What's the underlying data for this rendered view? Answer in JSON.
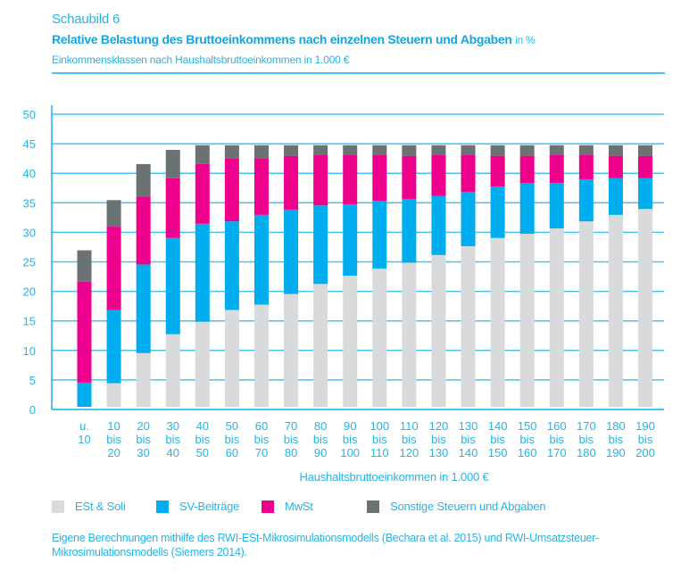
{
  "header": {
    "kicker": "Schaubild 6",
    "title": "Relative Belastung des Bruttoeinkommens nach einzelnen Steuern und Abgaben",
    "title_unit": "in %",
    "subtitle": "Einkommensklassen nach Haushaltsbruttoeinkommen in 1.000 €"
  },
  "source_note": "Eigene Berechnungen mithilfe des RWI-ESt-Mikrosimulationsmodells (Bechara et al. 2015) und RWI-Umsatzsteuer-Mikrosimulationsmodells (Siemers 2014).",
  "colors": {
    "text": "#27b4e6",
    "axis": "#1fb0e6",
    "grid": "#46c3ef",
    "est_soli": "#d9dadb",
    "sv_beitraege": "#00aeef",
    "mwst": "#ec008c",
    "sonstige": "#6b7273"
  },
  "chart_data": {
    "type": "bar",
    "stacked": true,
    "title": "Relative Belastung des Bruttoeinkommens nach einzelnen Steuern und Abgaben in %",
    "subtitle": "Einkommensklassen nach Haushaltsbruttoeinkommen in 1.000 €",
    "xlabel": "Haushaltsbruttoeinkommen in 1.000 €",
    "ylabel": "",
    "ylim": [
      0,
      50
    ],
    "yticks": [
      0,
      5,
      10,
      15,
      20,
      25,
      30,
      35,
      40,
      45,
      50
    ],
    "grid": true,
    "legend_position": "bottom",
    "categories": [
      [
        "u.",
        "10"
      ],
      [
        "10",
        "bis",
        "20"
      ],
      [
        "20",
        "bis",
        "30"
      ],
      [
        "30",
        "bis",
        "40"
      ],
      [
        "40",
        "bis",
        "50"
      ],
      [
        "50",
        "bis",
        "60"
      ],
      [
        "60",
        "bis",
        "70"
      ],
      [
        "70",
        "bis",
        "80"
      ],
      [
        "80",
        "bis",
        "90"
      ],
      [
        "90",
        "bis",
        "100"
      ],
      [
        "100",
        "bis",
        "110"
      ],
      [
        "110",
        "bis",
        "120"
      ],
      [
        "120",
        "bis",
        "130"
      ],
      [
        "130",
        "bis",
        "140"
      ],
      [
        "140",
        "bis",
        "150"
      ],
      [
        "150",
        "bis",
        "160"
      ],
      [
        "160",
        "bis",
        "170"
      ],
      [
        "170",
        "bis",
        "180"
      ],
      [
        "180",
        "bis",
        "190"
      ],
      [
        "190",
        "bis",
        "200"
      ]
    ],
    "series": [
      {
        "name": "ESt & Soli",
        "color_key": "est_soli",
        "values": [
          0.0,
          4.0,
          9.1,
          12.3,
          14.4,
          16.4,
          17.3,
          19.1,
          20.8,
          22.2,
          23.4,
          24.4,
          25.7,
          27.2,
          28.6,
          29.3,
          30.2,
          31.4,
          32.5,
          33.5
        ]
      },
      {
        "name": "SV-Beiträge",
        "color_key": "sv_beitraege",
        "values": [
          4.1,
          12.4,
          15.0,
          16.3,
          16.6,
          15.0,
          15.2,
          14.3,
          13.3,
          12.1,
          11.5,
          10.8,
          10.0,
          9.2,
          8.7,
          8.6,
          7.7,
          7.1,
          6.2,
          5.2
        ]
      },
      {
        "name": "MwSt",
        "color_key": "mwst",
        "values": [
          17.1,
          14.1,
          11.5,
          10.1,
          10.1,
          10.6,
          9.5,
          9.1,
          8.5,
          8.3,
          7.7,
          7.3,
          6.9,
          6.2,
          5.2,
          4.6,
          4.7,
          4.1,
          3.8,
          3.8
        ]
      },
      {
        "name": "Sonstige Steuern und Abgaben",
        "color_key": "sonstige",
        "values": [
          5.3,
          4.5,
          5.5,
          4.8,
          3.2,
          2.3,
          2.3,
          1.8,
          1.7,
          1.7,
          1.7,
          1.8,
          1.7,
          1.7,
          1.8,
          1.8,
          1.7,
          1.7,
          1.8,
          1.8
        ]
      }
    ]
  }
}
